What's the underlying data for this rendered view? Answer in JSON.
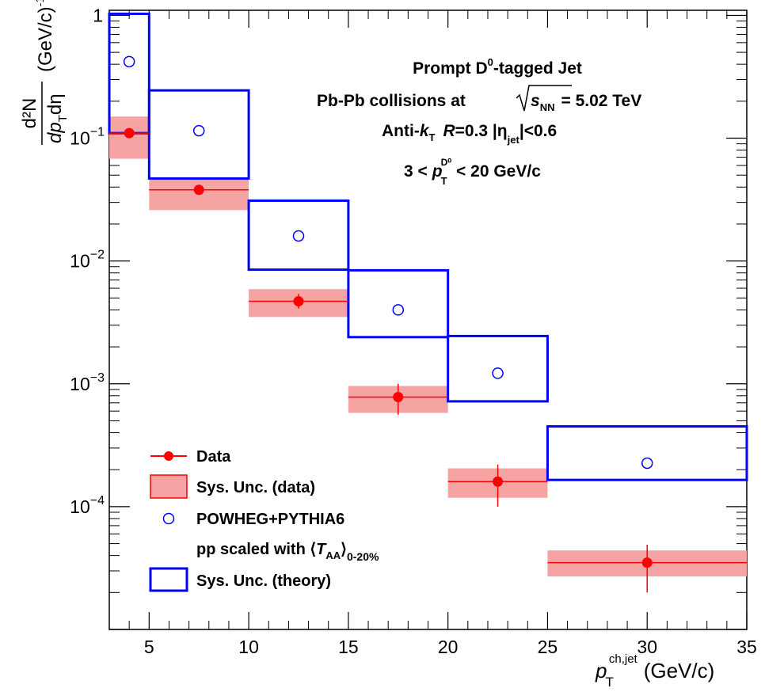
{
  "chart_data": {
    "type": "scatter",
    "x_scale": "linear",
    "y_scale": "log",
    "xlim": [
      3,
      35
    ],
    "ylim": [
      1e-05,
      1.1
    ],
    "x_ticks": [
      5,
      10,
      15,
      20,
      25,
      30,
      35
    ],
    "x_tick_labels": [
      "5",
      "10",
      "15",
      "20",
      "25",
      "30",
      "35"
    ],
    "y_tick_labels": [
      {
        "base": "1",
        "exp": ""
      },
      {
        "base": "10",
        "exp": "−1"
      },
      {
        "base": "10",
        "exp": "−2"
      },
      {
        "base": "10",
        "exp": "−3"
      },
      {
        "base": "10",
        "exp": "−4"
      }
    ],
    "y_tick_values": [
      1,
      0.1,
      0.01,
      0.001,
      0.0001
    ],
    "xlabel": {
      "main": "p",
      "sub": "T",
      "sup": "ch,jet",
      "unit": "(GeV/c)"
    },
    "ylabel": {
      "num": "d²N",
      "den_p": "dp",
      "den_sub": "T",
      "den_rest": "dη",
      "unit": "(GeV/c)",
      "unit_exp": "-1"
    },
    "annotations": {
      "line1_a": "Prompt D",
      "line1_sup": "0",
      "line1_b": "-tagged Jet",
      "line2_a": "Pb-Pb collisions at",
      "line2_s": "s",
      "line2_sub": "NN",
      "line2_b": "= 5.02 TeV",
      "line3_a": "Anti-",
      "line3_k": "k",
      "line3_ksub": "T",
      "line3_R": "R",
      "line3_b": "=0.3 |η",
      "line3_etasub": "jet",
      "line3_c": "|<0.6",
      "line4_a": "3 <",
      "line4_p": "p",
      "line4_psub": "T",
      "line4_psup": "D⁰",
      "line4_b": "< 20 GeV/c"
    },
    "legend": {
      "position": "bottom-left",
      "entries": [
        {
          "label": "Data"
        },
        {
          "label": "Sys. Unc. (data)"
        },
        {
          "label": "POWHEG+PYTHIA6"
        },
        {
          "label_a": "pp scaled with ⟨",
          "label_T": "T",
          "label_sub": "AA",
          "label_b": "⟩",
          "label_sub2": "0-20%"
        },
        {
          "label": "Sys. Unc. (theory)"
        }
      ]
    },
    "series": [
      {
        "name": "Data",
        "color": "#ff0000",
        "bins": [
          [
            3,
            5
          ],
          [
            5,
            10
          ],
          [
            10,
            15
          ],
          [
            15,
            20
          ],
          [
            20,
            25
          ],
          [
            25,
            35
          ]
        ],
        "x": [
          4,
          7.5,
          12.5,
          17.5,
          22.5,
          30
        ],
        "y": [
          0.11,
          0.038,
          0.0047,
          0.00078,
          0.00016,
          3.5e-05
        ],
        "stat_low": [
          0.103,
          0.036,
          0.0041,
          0.00056,
          0.0001,
          2e-05
        ],
        "stat_high": [
          0.118,
          0.04,
          0.0054,
          0.001,
          0.00022,
          4.9e-05
        ],
        "sys_low": [
          0.068,
          0.026,
          0.0035,
          0.00058,
          0.000118,
          2.7e-05
        ],
        "sys_high": [
          0.15,
          0.048,
          0.0059,
          0.00096,
          0.000205,
          4.4e-05
        ],
        "sys_color": "#f5a3a3"
      },
      {
        "name": "POWHEG+PYTHIA6",
        "color": "#0000ff",
        "bins": [
          [
            3,
            5
          ],
          [
            5,
            10
          ],
          [
            10,
            15
          ],
          [
            15,
            20
          ],
          [
            20,
            25
          ],
          [
            25,
            35
          ]
        ],
        "x": [
          4,
          7.5,
          12.5,
          17.5,
          22.5,
          30
        ],
        "y": [
          0.42,
          0.115,
          0.016,
          0.004,
          0.00122,
          0.000226
        ],
        "sys_low": [
          0.11,
          0.047,
          0.0085,
          0.0024,
          0.00072,
          0.000165
        ],
        "sys_high": [
          1.03,
          0.245,
          0.031,
          0.0084,
          0.00245,
          0.00045
        ]
      }
    ]
  }
}
